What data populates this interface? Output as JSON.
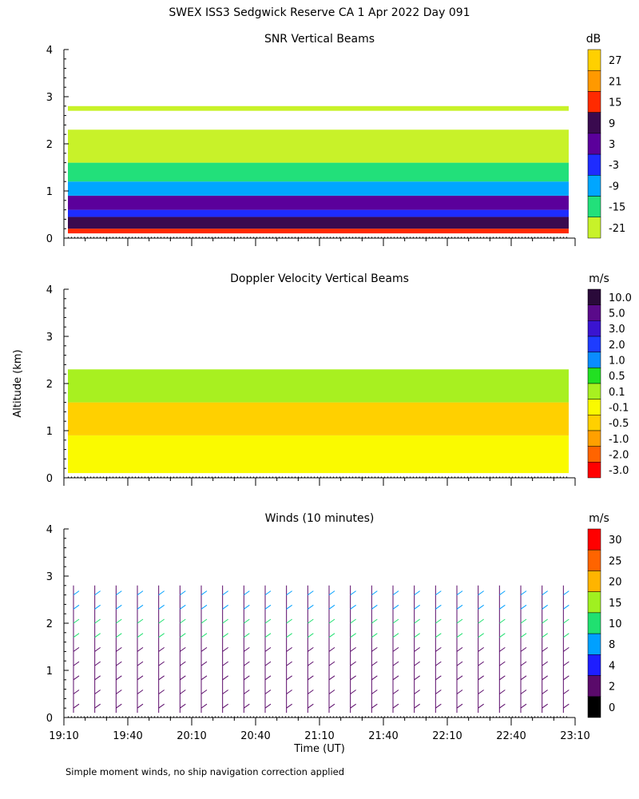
{
  "figure": {
    "title": "SWEX ISS3 Sedgwick Reserve CA    1 Apr 2022 Day 091",
    "ylabel": "Altitude (km)",
    "xlabel": "Time (UT)",
    "footnote": "Simple moment winds, no ship navigation correction applied",
    "x_ticks": [
      "19:10",
      "19:40",
      "20:10",
      "20:40",
      "21:10",
      "21:40",
      "22:10",
      "22:40",
      "23:10"
    ],
    "y_ticks": [
      "0",
      "1",
      "2",
      "3",
      "4"
    ]
  },
  "chart_data": [
    {
      "type": "heatmap",
      "title": "SNR Vertical Beams",
      "units": "dB",
      "xlim": [
        "19:10",
        "23:10"
      ],
      "ylim": [
        0,
        4
      ],
      "colorbar": {
        "labels": [
          "27",
          "21",
          "15",
          "9",
          "3",
          "-3",
          "-9",
          "-15",
          "-21"
        ],
        "colors": [
          "#ffd000",
          "#ff9900",
          "#ff2a00",
          "#3a0a4f",
          "#5b009b",
          "#1e2cff",
          "#00a6ff",
          "#22e07a",
          "#c8f229"
        ]
      },
      "layers": [
        {
          "ymin": 0.1,
          "ymax": 0.2,
          "value": 15
        },
        {
          "ymin": 0.2,
          "ymax": 0.45,
          "value": 9
        },
        {
          "ymin": 0.45,
          "ymax": 0.6,
          "value": -3
        },
        {
          "ymin": 0.6,
          "ymax": 0.9,
          "value": 3
        },
        {
          "ymin": 0.9,
          "ymax": 1.2,
          "value": -9
        },
        {
          "ymin": 1.2,
          "ymax": 1.6,
          "value": -15
        },
        {
          "ymin": 1.6,
          "ymax": 2.3,
          "value": -21
        },
        {
          "ymin": 2.7,
          "ymax": 2.8,
          "value": -21
        }
      ]
    },
    {
      "type": "heatmap",
      "title": "Doppler Velocity Vertical Beams",
      "units": "m/s",
      "xlim": [
        "19:10",
        "23:10"
      ],
      "ylim": [
        0,
        4
      ],
      "colorbar": {
        "labels": [
          "10.0",
          "5.0",
          "3.0",
          "2.0",
          "1.0",
          "0.5",
          "0.1",
          "-0.1",
          "-0.5",
          "-1.0",
          "-2.0",
          "-3.0"
        ],
        "colors": [
          "#2a0a3a",
          "#5a0a8a",
          "#3a14d0",
          "#1e3cff",
          "#0a8cff",
          "#22e022",
          "#a8f020",
          "#fafa00",
          "#ffd000",
          "#ffa000",
          "#ff6400",
          "#ff0000"
        ]
      },
      "layers": [
        {
          "ymin": 0.1,
          "ymax": 0.9,
          "value": -0.1
        },
        {
          "ymin": 0.9,
          "ymax": 1.6,
          "value": -0.5
        },
        {
          "ymin": 1.6,
          "ymax": 2.3,
          "value": 0.1
        }
      ]
    },
    {
      "type": "wind-barbs",
      "title": "Winds (10 minutes)",
      "units": "m/s",
      "interval_minutes": 10,
      "xlim": [
        "19:10",
        "23:10"
      ],
      "ylim": [
        0,
        4
      ],
      "colorbar": {
        "labels": [
          "30",
          "25",
          "20",
          "15",
          "10",
          "8",
          "4",
          "2",
          "0"
        ],
        "colors": [
          "#ff0000",
          "#ff6400",
          "#ffb400",
          "#a0f020",
          "#20e070",
          "#00a0ff",
          "#1e1eff",
          "#5a0a6a",
          "#000000"
        ]
      },
      "profile_times": [
        "19:10",
        "19:20",
        "19:30",
        "19:40",
        "19:50",
        "20:00",
        "20:10",
        "20:20",
        "20:30",
        "20:40",
        "20:50",
        "21:00",
        "21:10",
        "21:20",
        "21:30",
        "21:40",
        "21:50",
        "22:00",
        "22:10",
        "22:20",
        "22:30",
        "22:40",
        "22:50",
        "23:00"
      ],
      "max_height_km": 2.8
    }
  ]
}
